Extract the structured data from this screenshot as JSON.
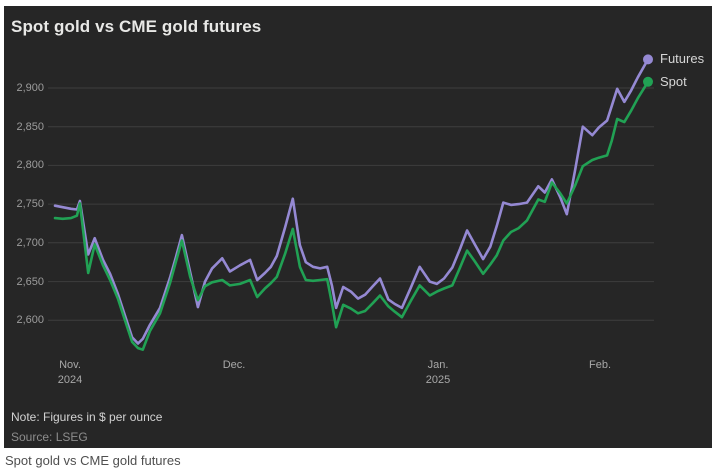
{
  "title": "Spot gold vs CME gold futures",
  "note": "Note: Figures in $ per ounce",
  "source": "Source: LSEG",
  "caption": "Spot gold vs CME gold futures",
  "colors": {
    "futures": "#9589d3",
    "spot": "#21a154",
    "panel_bg": "#262626",
    "gridline": "#3e3e3e",
    "axis_text": "#9c9c9c",
    "title_text": "#e8e8e6",
    "note_text": "#d2d2d2",
    "source_text": "#8d8d8d",
    "caption_text": "#4f4f4f"
  },
  "chart_data": {
    "type": "line",
    "title": "Spot gold vs CME gold futures",
    "unit": "$ per ounce",
    "ylim": [
      2555,
      2945
    ],
    "grid": "horizontal",
    "legend_position": "right-of-line-ends",
    "yticks": [
      {
        "value": 2600,
        "label": "2,600"
      },
      {
        "value": 2650,
        "label": "2,650"
      },
      {
        "value": 2700,
        "label": "2,700"
      },
      {
        "value": 2750,
        "label": "2,750"
      },
      {
        "value": 2800,
        "label": "2,800"
      },
      {
        "value": 2850,
        "label": "2,850"
      },
      {
        "value": 2900,
        "label": "2,900"
      }
    ],
    "xticks": [
      {
        "pct": 2.5,
        "label": "Nov.",
        "sublabel": "2024"
      },
      {
        "pct": 30.2,
        "label": "Dec.",
        "sublabel": ""
      },
      {
        "pct": 64.6,
        "label": "Jan.",
        "sublabel": "2025"
      },
      {
        "pct": 91.9,
        "label": "Feb.",
        "sublabel": ""
      }
    ],
    "x_pct": [
      0,
      1.3,
      2.7,
      3.7,
      4.2,
      5.6,
      6.7,
      8.1,
      9.3,
      10.6,
      11.8,
      13.0,
      14.0,
      14.8,
      16.0,
      17.7,
      19.4,
      20.4,
      21.4,
      22.8,
      24.1,
      25.3,
      26.5,
      28.2,
      29.5,
      31.2,
      32.9,
      34.1,
      35.4,
      36.4,
      37.4,
      38.8,
      40.1,
      41.3,
      42.3,
      43.5,
      44.7,
      45.9,
      46.7,
      47.4,
      48.6,
      49.9,
      51.1,
      52.3,
      53.6,
      54.8,
      56.2,
      57.3,
      58.5,
      60.0,
      61.5,
      63.2,
      64.4,
      65.6,
      67.0,
      68.3,
      69.5,
      70.8,
      72.2,
      73.4,
      74.5,
      75.6,
      76.9,
      78.2,
      79.6,
      81.5,
      82.6,
      83.8,
      85.2,
      86.3,
      87.7,
      89.0,
      90.6,
      91.7,
      93.1,
      93.9,
      94.8,
      96.0,
      97.1,
      98.3,
      100
    ],
    "series": [
      {
        "name": "Futures",
        "color": "#9589d3",
        "values": [
          2748,
          2746,
          2744,
          2743,
          2754,
          2685,
          2706,
          2678,
          2660,
          2634,
          2606,
          2578,
          2570,
          2576,
          2594,
          2616,
          2655,
          2682,
          2710,
          2662,
          2617,
          2650,
          2667,
          2680,
          2663,
          2671,
          2678,
          2652,
          2661,
          2669,
          2683,
          2720,
          2757,
          2697,
          2675,
          2669,
          2667,
          2669,
          2645,
          2616,
          2643,
          2637,
          2628,
          2633,
          2644,
          2654,
          2627,
          2621,
          2616,
          2642,
          2669,
          2650,
          2647,
          2654,
          2668,
          2692,
          2716,
          2698,
          2679,
          2695,
          2722,
          2752,
          2749,
          2750,
          2752,
          2773,
          2765,
          2782,
          2759,
          2737,
          2794,
          2850,
          2839,
          2849,
          2858,
          2877,
          2899,
          2882,
          2896,
          2914,
          2937
        ]
      },
      {
        "name": "Spot",
        "color": "#21a154",
        "values": [
          2732,
          2731,
          2732,
          2735,
          2751,
          2661,
          2698,
          2671,
          2652,
          2628,
          2600,
          2572,
          2564,
          2562,
          2586,
          2609,
          2648,
          2676,
          2703,
          2656,
          2626,
          2644,
          2649,
          2652,
          2645,
          2647,
          2652,
          2630,
          2641,
          2648,
          2656,
          2686,
          2718,
          2669,
          2652,
          2651,
          2652,
          2653,
          2622,
          2591,
          2620,
          2615,
          2609,
          2612,
          2622,
          2632,
          2618,
          2611,
          2604,
          2625,
          2645,
          2632,
          2637,
          2641,
          2645,
          2668,
          2690,
          2676,
          2660,
          2672,
          2684,
          2703,
          2714,
          2719,
          2729,
          2756,
          2753,
          2778,
          2764,
          2751,
          2774,
          2799,
          2807,
          2810,
          2813,
          2832,
          2860,
          2856,
          2870,
          2887,
          2908
        ]
      }
    ]
  }
}
